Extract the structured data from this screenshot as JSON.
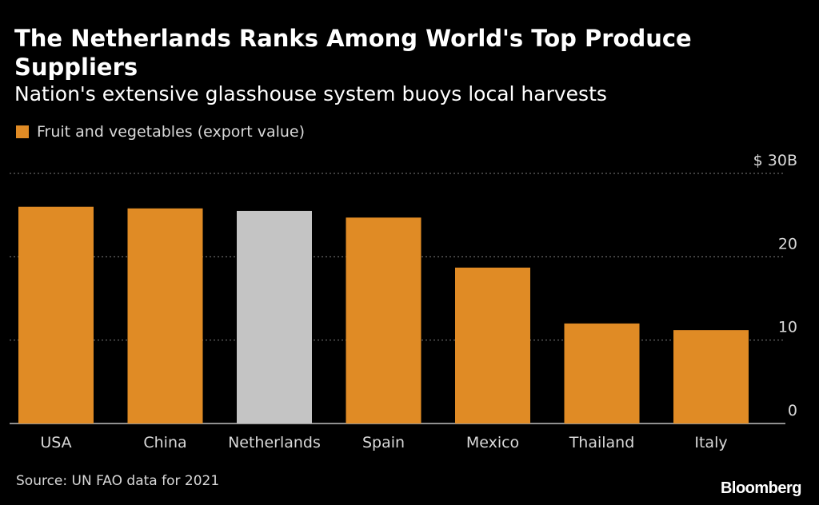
{
  "chart_data": {
    "type": "bar",
    "title": "The Netherlands Ranks Among World's Top Produce Suppliers",
    "subtitle": "Nation's extensive glasshouse system buoys local harvests",
    "series": [
      {
        "name": "Fruit and vegetables (export value)",
        "values": [
          26.0,
          25.8,
          25.5,
          24.7,
          18.7,
          12.0,
          11.2
        ]
      }
    ],
    "categories": [
      "USA",
      "China",
      "Netherlands",
      "Spain",
      "Mexico",
      "Thailand",
      "Italy"
    ],
    "highlight": "Netherlands",
    "ylim": [
      0,
      30
    ],
    "yticks": [
      0,
      10,
      20,
      30
    ],
    "ytick_labels": [
      "0",
      "10",
      "20",
      "$ 30B"
    ],
    "xlabel": "",
    "ylabel": "",
    "grid": true,
    "legend_position": "top-left",
    "colors": {
      "bar": "#e08b25",
      "highlight": "#c4c4c4",
      "grid": "#808080",
      "background": "#000000",
      "text": "#ffffff",
      "muted_text": "#d9d9d9"
    }
  },
  "source": "Source: UN FAO data for 2021",
  "brand": "Bloomberg"
}
